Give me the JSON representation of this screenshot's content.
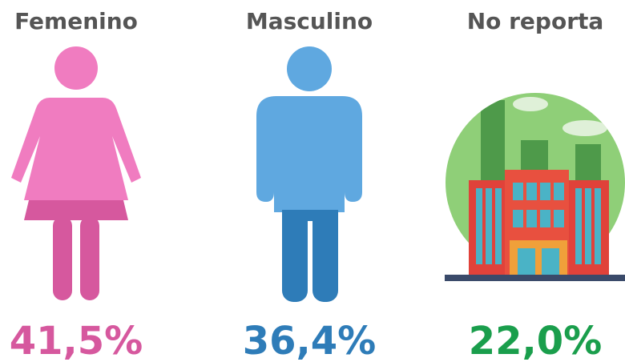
{
  "items": [
    {
      "label": "Femenino",
      "value": "41,5%",
      "color": "#d6589e"
    },
    {
      "label": "Masculino",
      "value": "36,4%",
      "color": "#2e7cb8"
    },
    {
      "label": "No reporta",
      "value": "22,0%",
      "color": "#1a9e4c"
    }
  ]
}
